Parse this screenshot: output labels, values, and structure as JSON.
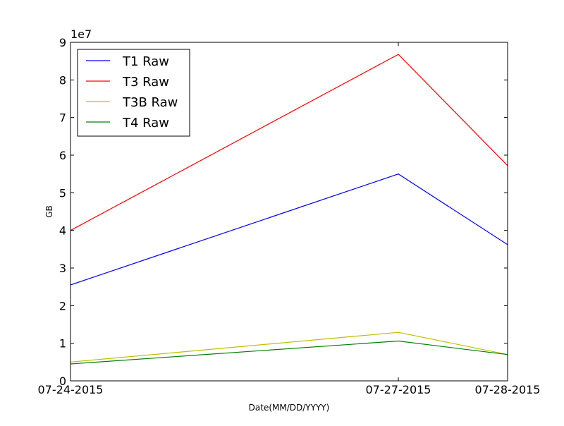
{
  "chart_data": {
    "type": "line",
    "title": "",
    "xlabel": "Date(MM/DD/YYYY)",
    "ylabel": "GB",
    "y_offset_label": "1e7",
    "categories": [
      "07-24-2015",
      "07-27-2015",
      "07-28-2015"
    ],
    "x_values": [
      "2015-07-24",
      "2015-07-27",
      "2015-07-28"
    ],
    "ylim": [
      0,
      90000000
    ],
    "yticks": [
      0,
      10000000,
      20000000,
      30000000,
      40000000,
      50000000,
      60000000,
      70000000,
      80000000,
      90000000
    ],
    "ytick_labels": [
      "0",
      "1",
      "2",
      "3",
      "4",
      "5",
      "6",
      "7",
      "8",
      "9"
    ],
    "grid": false,
    "legend_position": "top-left",
    "series": [
      {
        "name": "T1 Raw",
        "color": "#0000ff",
        "values": [
          25500000,
          55000000,
          36200000
        ]
      },
      {
        "name": "T3 Raw",
        "color": "#ff0000",
        "values": [
          40000000,
          86800000,
          57200000
        ]
      },
      {
        "name": "T3B Raw",
        "color": "#bfbf00",
        "values": [
          5000000,
          12900000,
          7000000
        ]
      },
      {
        "name": "T4 Raw",
        "color": "#008000",
        "values": [
          4500000,
          10600000,
          7000000
        ]
      }
    ]
  }
}
